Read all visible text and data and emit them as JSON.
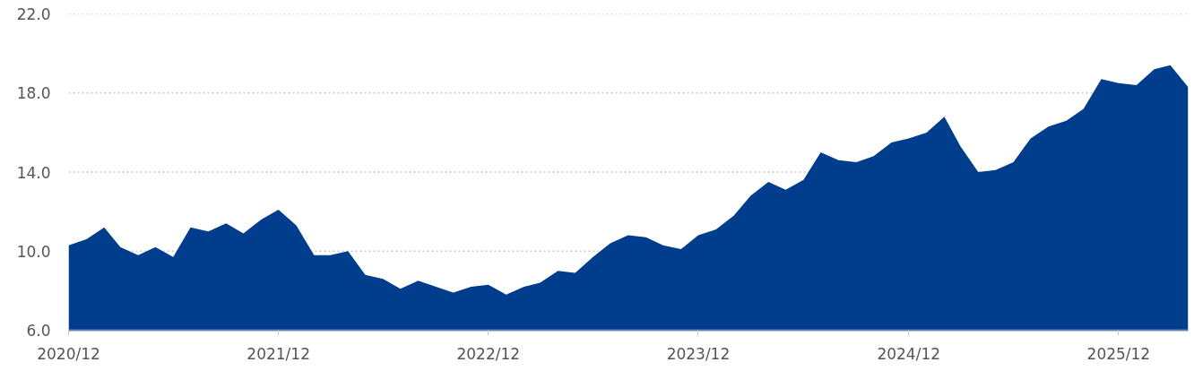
{
  "chart_data": {
    "type": "area",
    "color": "#003d8c",
    "x": [
      "2020-12",
      "2021-01",
      "2021-02",
      "2021-03",
      "2021-04",
      "2021-05",
      "2021-06",
      "2021-07",
      "2021-08",
      "2021-09",
      "2021-10",
      "2021-11",
      "2021-12",
      "2022-01",
      "2022-02",
      "2022-03",
      "2022-04",
      "2022-05",
      "2022-06",
      "2022-07",
      "2022-08",
      "2022-09",
      "2022-10",
      "2022-11",
      "2022-12",
      "2023-01",
      "2023-02",
      "2023-03",
      "2023-04",
      "2023-05",
      "2023-06",
      "2023-07",
      "2023-08",
      "2023-09",
      "2023-10",
      "2023-11",
      "2023-12",
      "2024-01",
      "2024-02",
      "2024-03",
      "2024-04",
      "2024-05",
      "2024-06",
      "2024-07",
      "2024-08",
      "2024-09",
      "2024-10",
      "2024-11",
      "2024-12",
      "2025-01",
      "2025-02",
      "2025-03",
      "2025-04",
      "2025-05",
      "2025-06",
      "2025-07",
      "2025-08",
      "2025-09",
      "2025-10",
      "2025-11",
      "2025-12",
      "2026-01",
      "2026-02",
      "2026-03",
      "2026-04"
    ],
    "values": [
      10.3,
      10.6,
      11.2,
      10.2,
      9.8,
      10.2,
      9.7,
      11.2,
      11.0,
      11.4,
      10.9,
      11.6,
      12.1,
      11.3,
      9.8,
      9.8,
      10.0,
      8.8,
      8.6,
      8.1,
      8.5,
      8.2,
      7.9,
      8.2,
      8.3,
      7.8,
      8.2,
      8.4,
      9.0,
      8.9,
      9.7,
      10.4,
      10.8,
      10.7,
      10.3,
      10.1,
      10.8,
      11.1,
      11.8,
      12.8,
      13.5,
      13.1,
      13.6,
      15.0,
      14.6,
      14.5,
      14.8,
      15.5,
      15.7,
      16.0,
      16.8,
      15.3,
      14.0,
      14.1,
      14.5,
      15.7,
      16.3,
      16.6,
      17.2,
      18.7,
      18.5,
      18.4,
      19.2,
      19.4,
      18.3
    ],
    "xlim": [
      "2020-12",
      "2026-04"
    ],
    "xticks": [
      {
        "value": "2020-12",
        "label": "2020/12"
      },
      {
        "value": "2021-12",
        "label": "2021/12"
      },
      {
        "value": "2022-12",
        "label": "2022/12"
      },
      {
        "value": "2023-12",
        "label": "2023/12"
      },
      {
        "value": "2024-12",
        "label": "2024/12"
      },
      {
        "value": "2025-12",
        "label": "2025/12"
      }
    ],
    "ylim": [
      6,
      22
    ],
    "yticks": [
      {
        "value": 6,
        "label": "6.0"
      },
      {
        "value": 10,
        "label": "10.0"
      },
      {
        "value": 14,
        "label": "14.0"
      },
      {
        "value": 18,
        "label": "18.0"
      },
      {
        "value": 22,
        "label": "22.0"
      }
    ],
    "grid": "y"
  }
}
